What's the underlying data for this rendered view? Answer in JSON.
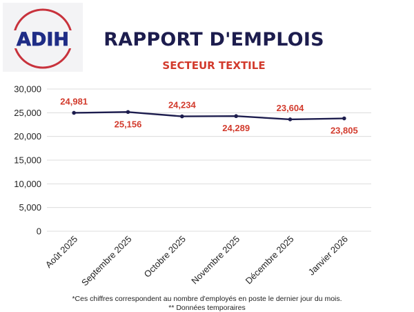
{
  "header": {
    "logo_text": "ADIH",
    "title": "RAPPORT D'EMPLOIS",
    "subtitle": "SECTEUR TEXTILE"
  },
  "colors": {
    "navy": "#1d1d4e",
    "red": "#d23a2c",
    "logo_red": "#c8323c",
    "logo_blue": "#1f2d86",
    "grid": "#dcdcdc",
    "line": "#1d1d4e"
  },
  "chart_data": {
    "type": "line",
    "categories": [
      "Août 2025",
      "Septembre 2025",
      "Octobre 2025",
      "Novembre 2025",
      "Décembre 2025",
      "Janvier 2026"
    ],
    "values": [
      24981,
      25156,
      24234,
      24289,
      23604,
      23805
    ],
    "data_labels": [
      "24,981",
      "25,156",
      "24,234",
      "24,289",
      "23,604",
      "23,805"
    ],
    "label_placement": [
      "above",
      "below",
      "above",
      "below",
      "above",
      "below"
    ],
    "ylim": [
      0,
      30000
    ],
    "yticks": [
      0,
      5000,
      10000,
      15000,
      20000,
      25000,
      30000
    ],
    "ytick_labels": [
      "0",
      "5,000",
      "10,000",
      "15,000",
      "20,000",
      "25,000",
      "30,000"
    ],
    "title": "",
    "xlabel": "",
    "ylabel": "",
    "grid": true
  },
  "footnotes": {
    "line1": "*Ces chiffres correspondent au nombre d'employés en poste le dernier jour du mois.",
    "line2": "** Données temporaires"
  }
}
